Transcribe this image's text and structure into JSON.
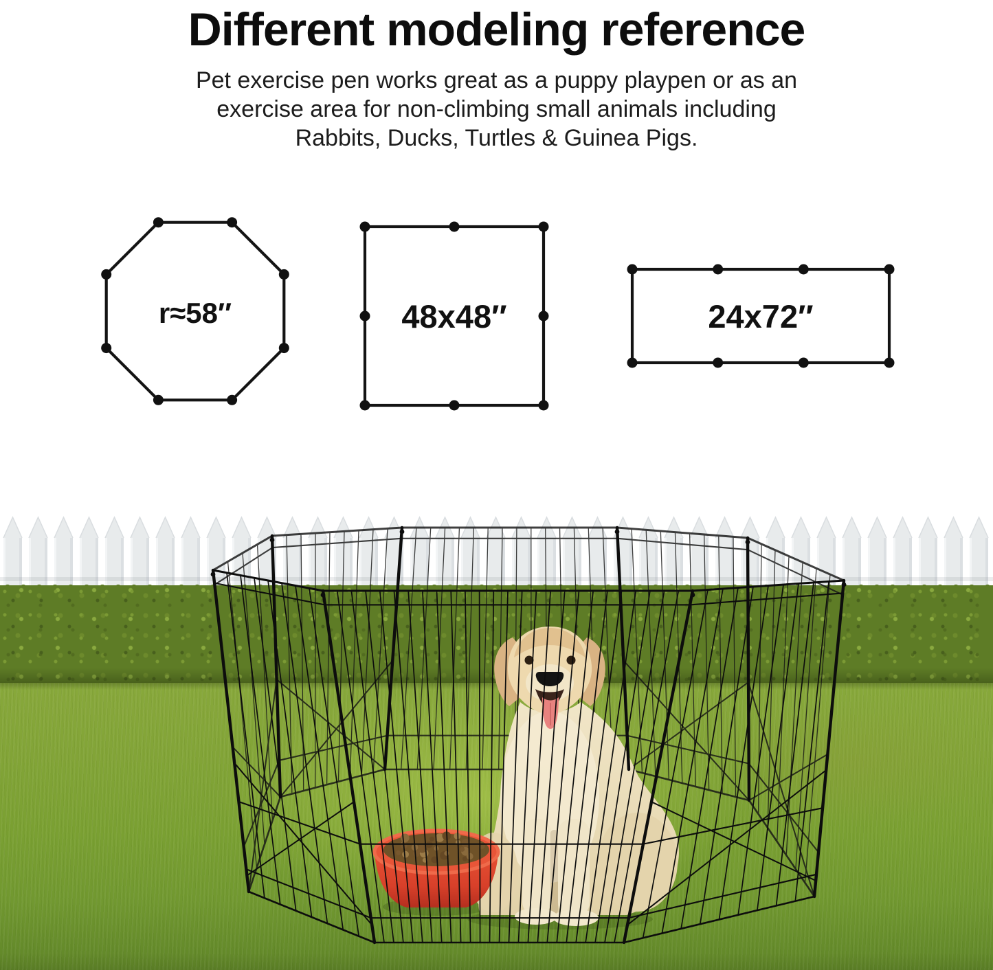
{
  "header": {
    "title": "Different modeling reference",
    "subtitle_lines": [
      "Pet exercise pen works great as a puppy playpen or as an",
      "exercise area for non-climbing small animals including",
      "Rabbits, Ducks, Turtles & Guinea Pigs."
    ]
  },
  "diagrams": {
    "shapes": [
      {
        "id": "octagon",
        "label": "r≈58″"
      },
      {
        "id": "square",
        "label": "48x48″"
      },
      {
        "id": "rectangle",
        "label": "24x72″"
      }
    ]
  },
  "scene": {
    "elements": [
      "white-picket-fence",
      "garden-hedge",
      "green-lawn",
      "black-wire-playpen",
      "golden-retriever-dog",
      "red-food-bowl-with-kibble"
    ],
    "colors": {
      "background": "#ffffff",
      "text": "#111111",
      "pen_wire": "#121212",
      "fence_picket": "#e8ebec",
      "hedge_green": "#5e7c26",
      "grass_green": "#7aa032",
      "bowl_red": "#dd4a2f",
      "dog_cream": "#ebdfbe"
    }
  }
}
